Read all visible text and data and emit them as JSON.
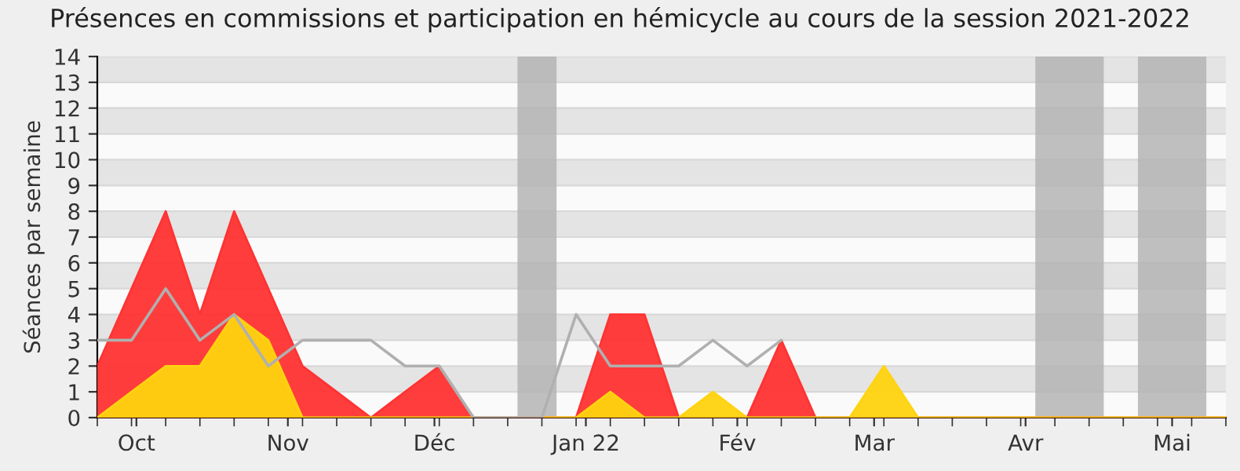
{
  "chart_data": {
    "type": "area",
    "title": "Présences en commissions et participation en hémicycle au cours de la session 2021-2022",
    "ylabel": "Séances par semaine",
    "x": [
      "2021-09-23",
      "2021-09-30",
      "2021-10-07",
      "2021-10-14",
      "2021-10-21",
      "2021-10-28",
      "2021-11-04",
      "2021-11-11",
      "2021-11-18",
      "2021-11-25",
      "2021-12-02",
      "2021-12-09",
      "2021-12-16",
      "2021-12-23",
      "2021-12-30",
      "2022-01-06",
      "2022-01-13",
      "2022-01-20",
      "2022-01-27",
      "2022-02-03",
      "2022-02-10",
      "2022-02-17",
      "2022-02-24",
      "2022-03-03",
      "2022-03-10",
      "2022-03-17",
      "2022-03-24",
      "2022-03-31",
      "2022-04-07",
      "2022-04-14",
      "2022-04-21",
      "2022-04-28",
      "2022-05-05",
      "2022-05-12"
    ],
    "series": [
      {
        "color": "#ff3333",
        "values": [
          2,
          5,
          8,
          4,
          8,
          5,
          2,
          1,
          0,
          1,
          2,
          0,
          0,
          0,
          0,
          4,
          4,
          0,
          0,
          0,
          3,
          0,
          0,
          0,
          0,
          0,
          0,
          0,
          0,
          0,
          0,
          0,
          0,
          0
        ]
      },
      {
        "color": "#ffd30f",
        "values": [
          0,
          1,
          2,
          2,
          4,
          3,
          0,
          0,
          0,
          0,
          0,
          0,
          0,
          0,
          0,
          1,
          0,
          0,
          1,
          0,
          0,
          0,
          0,
          2,
          0,
          0,
          0,
          0,
          0,
          0,
          0,
          0,
          0,
          0
        ]
      },
      {
        "type": "line",
        "color": "#b0b0b0",
        "values": [
          3,
          3,
          5,
          3,
          4,
          2,
          3,
          3,
          3,
          2,
          2,
          0,
          0,
          0,
          4,
          2,
          2,
          2,
          3,
          2,
          3,
          null,
          null,
          null,
          null,
          null,
          null,
          null,
          null,
          null,
          null,
          null,
          null,
          null
        ]
      }
    ],
    "xlim": [
      "2021-09-23",
      "2022-05-12"
    ],
    "xticks": [
      {
        "value": "2021-10-01",
        "label": "Oct"
      },
      {
        "value": "2021-11-01",
        "label": "Nov"
      },
      {
        "value": "2021-12-01",
        "label": "Déc"
      },
      {
        "value": "2022-01-01",
        "label": "Jan 22"
      },
      {
        "value": "2022-02-01",
        "label": "Fév"
      },
      {
        "value": "2022-03-01",
        "label": "Mar"
      },
      {
        "value": "2022-04-01",
        "label": "Avr"
      },
      {
        "value": "2022-05-01",
        "label": "Mai"
      }
    ],
    "ylim": [
      0,
      14
    ],
    "yticks": [
      0,
      1,
      2,
      3,
      4,
      5,
      6,
      7,
      8,
      9,
      10,
      11,
      12,
      13,
      14
    ],
    "bands": [
      {
        "axis": "x",
        "from": "2021-12-18",
        "to": "2021-12-26",
        "color": "#b4b4b4"
      },
      {
        "axis": "x",
        "from": "2022-04-03",
        "to": "2022-04-17",
        "color": "#b4b4b4"
      },
      {
        "axis": "x",
        "from": "2022-04-24",
        "to": "2022-05-08",
        "color": "#b4b4b4"
      }
    ],
    "grid": "y"
  }
}
